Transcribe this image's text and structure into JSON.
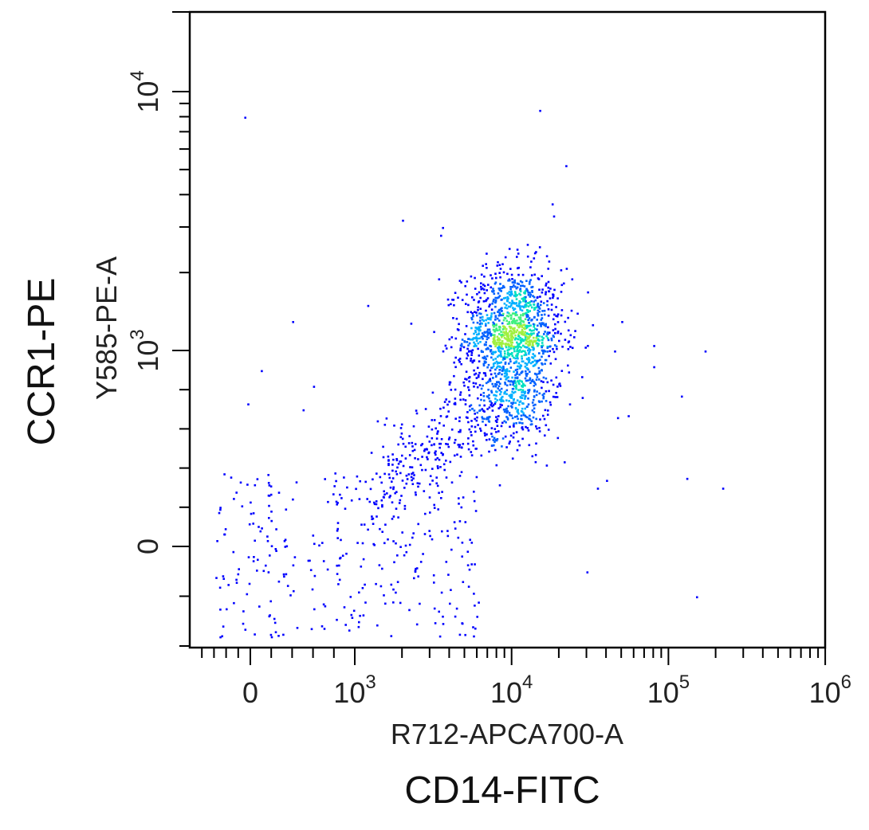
{
  "chart_data": {
    "type": "scatter",
    "style": "pseudocolor density dot plot",
    "x_axis": {
      "label": "R712-APCA700-A",
      "outer_label": "CD14-FITC",
      "scale": "biexponential (log above 10^3)",
      "range": [
        -1000,
        1000000
      ],
      "tick_labels": [
        {
          "value": 0,
          "text": "0"
        },
        {
          "value": 1000,
          "base": "10",
          "exp": "3"
        },
        {
          "value": 10000,
          "base": "10",
          "exp": "4"
        },
        {
          "value": 100000,
          "base": "10",
          "exp": "5"
        },
        {
          "value": 1000000,
          "base": "10",
          "exp": "6"
        }
      ]
    },
    "y_axis": {
      "label": "Y585-PE-A",
      "outer_label": "CCR1-PE",
      "scale": "biexponential (log above 10^3)",
      "range": [
        -200,
        20000
      ],
      "tick_labels": [
        {
          "value": 0,
          "text": "0"
        },
        {
          "value": 1000,
          "base": "10",
          "exp": "3"
        },
        {
          "value": 10000,
          "base": "10",
          "exp": "4"
        }
      ]
    },
    "populations": [
      {
        "name": "",
        "center": [
          10000,
          1100
        ],
        "spread_log": [
          0.16,
          0.14
        ],
        "count": 1500
      },
      {
        "name": "",
        "center": [
          7000,
          600
        ],
        "spread_log": [
          0.22,
          0.2
        ],
        "count": 320
      },
      {
        "name": "",
        "center": [
          2000,
          100
        ],
        "spread_log": [
          0.35,
          0.0
        ],
        "count": 300
      }
    ],
    "outlier_points": [
      [
        24000,
        1900
      ],
      [
        26000,
        1400
      ],
      [
        50000,
        1300
      ],
      [
        45000,
        1000
      ],
      [
        80000,
        1050
      ],
      [
        170000,
        1000
      ],
      [
        120000,
        770
      ],
      [
        47000,
        660
      ],
      [
        55000,
        670
      ],
      [
        80000,
        920
      ],
      [
        220000,
        300
      ],
      [
        130000,
        350
      ],
      [
        40000,
        340
      ],
      [
        35000,
        300
      ],
      [
        30000,
        -50
      ],
      [
        150000,
        -100
      ],
      [
        -100,
        8000
      ],
      [
        15000,
        8500
      ],
      [
        22000,
        5200
      ],
      [
        3500,
        2800
      ],
      [
        2000,
        3200
      ],
      [
        1200,
        1500
      ],
      [
        400,
        1300
      ],
      [
        500,
        700
      ],
      [
        600,
        820
      ],
      [
        -50,
        730
      ],
      [
        100,
        900
      ],
      [
        18000,
        3700
      ],
      [
        3600,
        3000
      ],
      [
        3400,
        1900
      ]
    ],
    "colormap": [
      "#0000ff",
      "#0060ff",
      "#00b0ff",
      "#00e0c0",
      "#40f080",
      "#a0f040"
    ],
    "grid": false,
    "legend": "none"
  }
}
